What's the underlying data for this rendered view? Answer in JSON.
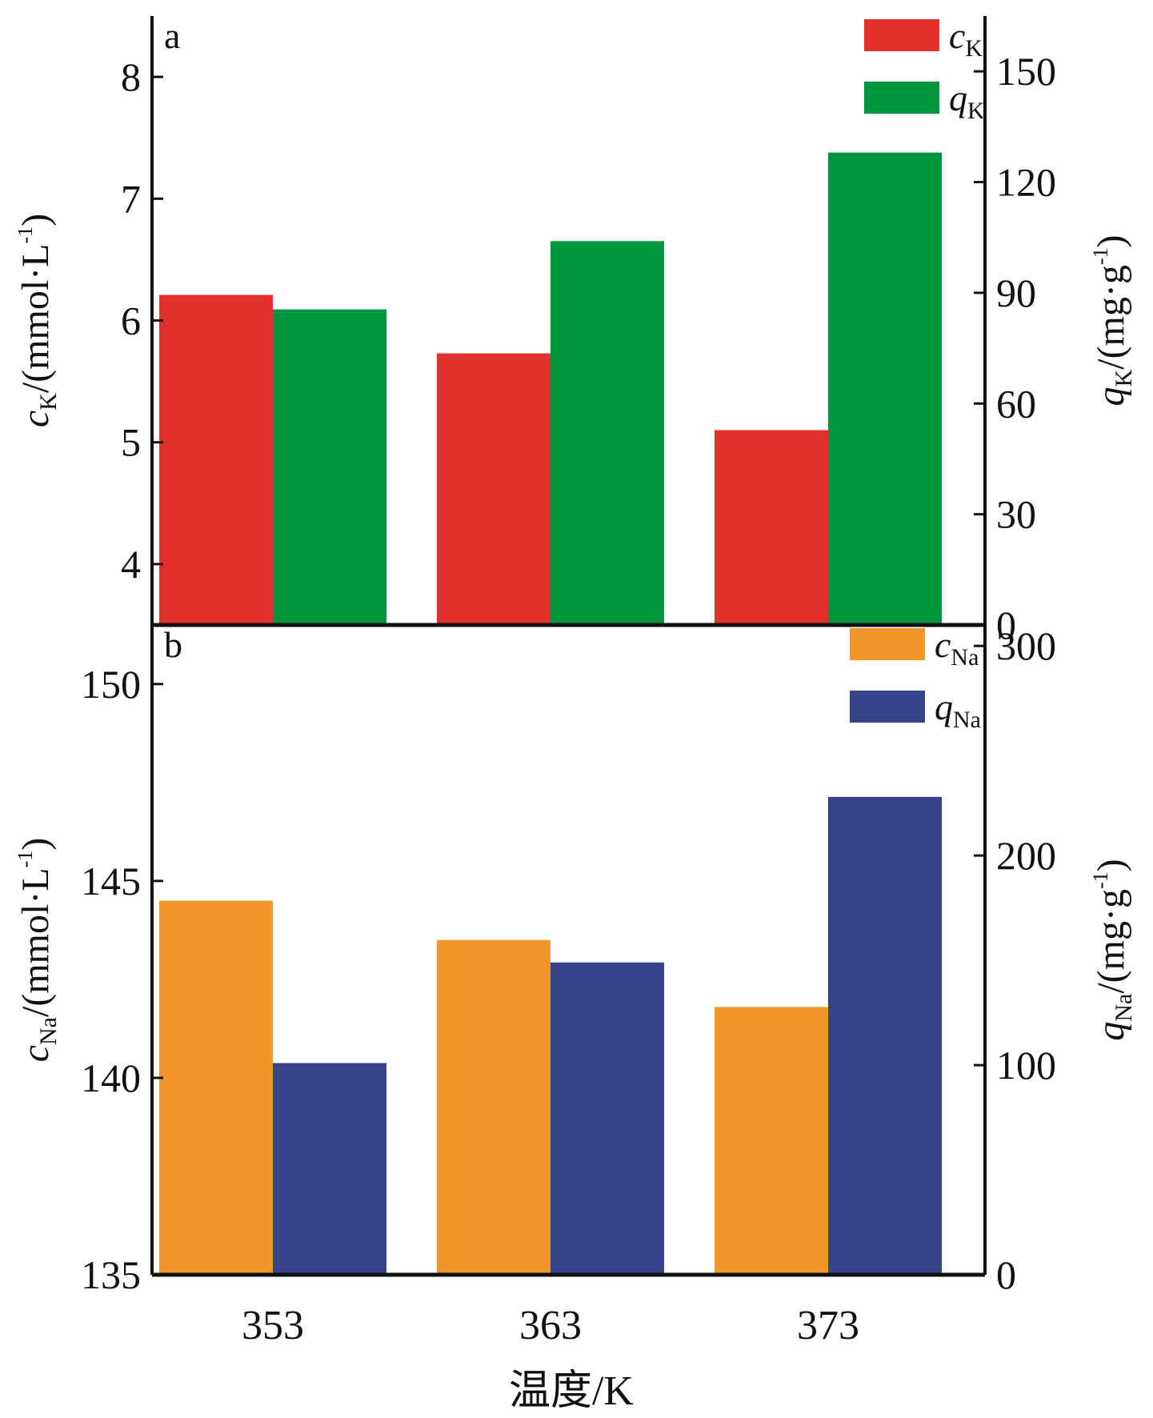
{
  "chart_data": [
    {
      "type": "bar",
      "panel_label": "a",
      "categories": [
        "353",
        "363",
        "373"
      ],
      "left_axis": {
        "label_main": "c",
        "label_sub": "K",
        "label_unit_pre": "/(mmol·L",
        "label_unit_sup": "-1",
        "label_unit_post": ")",
        "ylim": [
          3.5,
          8.5
        ],
        "ticks": [
          "4",
          "5",
          "6",
          "7",
          "8"
        ]
      },
      "right_axis": {
        "label_main": "q",
        "label_sub": "K",
        "label_unit_pre": "/(mg·g",
        "label_unit_sup": "-1",
        "label_unit_post": ")",
        "ylim": [
          0,
          165
        ],
        "ticks": [
          "0",
          "30",
          "60",
          "90",
          "120",
          "150"
        ]
      },
      "series": [
        {
          "name_main": "c",
          "name_sub": "K",
          "axis": "left",
          "color": "#e2312c",
          "values": [
            6.21,
            5.73,
            5.1
          ]
        },
        {
          "name_main": "q",
          "name_sub": "K",
          "axis": "right",
          "color": "#009640",
          "values": [
            85.5,
            104.0,
            128.0
          ]
        }
      ],
      "legend": "top-right"
    },
    {
      "type": "bar",
      "panel_label": "b",
      "categories": [
        "353",
        "363",
        "373"
      ],
      "left_axis": {
        "label_main": "c",
        "label_sub": "Na",
        "label_unit_pre": "/(mmol·L",
        "label_unit_sup": "-1",
        "label_unit_post": ")",
        "ylim": [
          135,
          151.5
        ],
        "ticks": [
          "135",
          "140",
          "145",
          "150"
        ]
      },
      "right_axis": {
        "label_main": "q",
        "label_sub": "Na",
        "label_unit_pre": "/(mg·g",
        "label_unit_sup": "-1",
        "label_unit_post": ")",
        "ylim": [
          0,
          310
        ],
        "ticks": [
          "0",
          "100",
          "200",
          "300"
        ]
      },
      "series": [
        {
          "name_main": "c",
          "name_sub": "Na",
          "axis": "left",
          "color": "#f0962a",
          "values": [
            144.5,
            143.5,
            141.8
          ]
        },
        {
          "name_main": "q",
          "name_sub": "Na",
          "axis": "right",
          "color": "#364388",
          "values": [
            101,
            149,
            228
          ]
        }
      ],
      "legend": "top-right"
    }
  ],
  "x_axis": {
    "title": "温度/K"
  }
}
